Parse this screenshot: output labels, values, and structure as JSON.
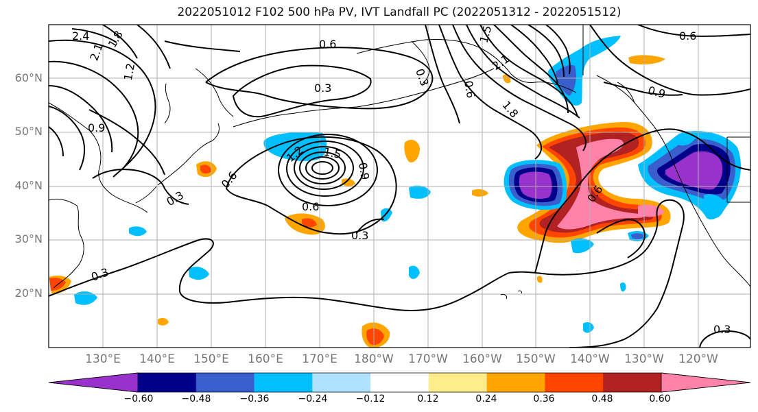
{
  "title": "2022051012 F102 500 hPa PV, IVT Landfall PC (2022051312 - 2022051512)",
  "map": {
    "lat_labels": [
      "60°N",
      "50°N",
      "40°N",
      "30°N",
      "20°N"
    ],
    "lon_labels": [
      "130°E",
      "140°E",
      "150°E",
      "160°E",
      "170°E",
      "180°W",
      "170°W",
      "160°W",
      "150°W",
      "140°W",
      "130°W",
      "120°W"
    ],
    "contour_labels": [
      "2.4",
      "2.1",
      "1.8",
      "1.2",
      "0.6",
      "0.3",
      "0.9",
      "1.2",
      "1.5",
      "0.9",
      "0.6",
      "0.3",
      "0.6",
      "0.3",
      "0.3",
      "1.5",
      "2.1",
      "0.3",
      "0.6",
      "1.8",
      "0.9",
      "0.6",
      "0.6",
      "0.3"
    ],
    "colors": {
      "neg_060": "#9932CC",
      "neg_048": "#00008B",
      "neg_036": "#3A5FCD",
      "neg_024": "#00BFFF",
      "neg_012": "#B0E2FF",
      "neutral": "#FFFFFF",
      "pos_012": "#FFEC8B",
      "pos_024": "#FFA500",
      "pos_036": "#FF4500",
      "pos_048": "#B22222",
      "pos_060": "#FF82AB"
    }
  },
  "colorbar": {
    "tick_labels": [
      "−0.60",
      "−0.48",
      "−0.36",
      "−0.24",
      "−0.12",
      "0.12",
      "0.24",
      "0.36",
      "0.48",
      "0.60"
    ],
    "colors": [
      "#9932CC",
      "#00008B",
      "#3A5FCD",
      "#00BFFF",
      "#B0E2FF",
      "#FFFFFF",
      "#FFEC8B",
      "#FFA500",
      "#FF4500",
      "#B22222",
      "#FF82AB"
    ]
  }
}
